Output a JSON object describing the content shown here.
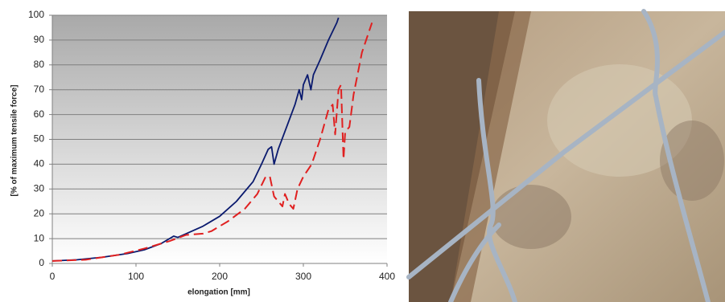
{
  "chart_data": {
    "type": "line",
    "x_label": "elongation [mm]",
    "y_label": "[% of maximum  tensile force]",
    "xlim": [
      0,
      400
    ],
    "xticks": [
      0,
      100,
      200,
      300,
      400
    ],
    "ylim": [
      0,
      100
    ],
    "yticks": [
      0,
      10,
      20,
      30,
      40,
      50,
      60,
      70,
      80,
      90,
      100
    ],
    "grid": true,
    "series": [
      {
        "color": "#0a1a6e",
        "dash": false,
        "x": [
          0,
          30,
          60,
          90,
          110,
          130,
          140,
          145,
          150,
          160,
          180,
          200,
          220,
          240,
          250,
          258,
          262,
          265,
          270,
          280,
          290,
          295,
          298,
          300,
          305,
          309,
          312,
          320,
          330,
          340,
          342
        ],
        "values": [
          1,
          1.5,
          2.5,
          4,
          5.5,
          8,
          10,
          11,
          10.5,
          12,
          15,
          19,
          25,
          33,
          40,
          46,
          47,
          40,
          46,
          55,
          64,
          70,
          66,
          72,
          76,
          70,
          76,
          82,
          90,
          97,
          99
        ]
      },
      {
        "color": "#e02020",
        "dash": true,
        "x": [
          0,
          40,
          80,
          110,
          140,
          160,
          180,
          190,
          210,
          230,
          245,
          255,
          260,
          265,
          270,
          275,
          278,
          283,
          288,
          293,
          300,
          310,
          320,
          330,
          335,
          338,
          342,
          345,
          348,
          350,
          355,
          360,
          370,
          375,
          382
        ],
        "values": [
          1,
          1.5,
          3.5,
          6,
          9,
          11.5,
          12,
          13,
          17,
          22,
          28,
          35,
          35,
          27,
          25,
          23,
          28,
          24,
          22,
          30,
          35,
          40,
          50,
          62,
          64,
          52,
          70,
          72,
          42,
          53,
          55,
          68,
          85,
          90,
          97
        ]
      }
    ]
  }
}
